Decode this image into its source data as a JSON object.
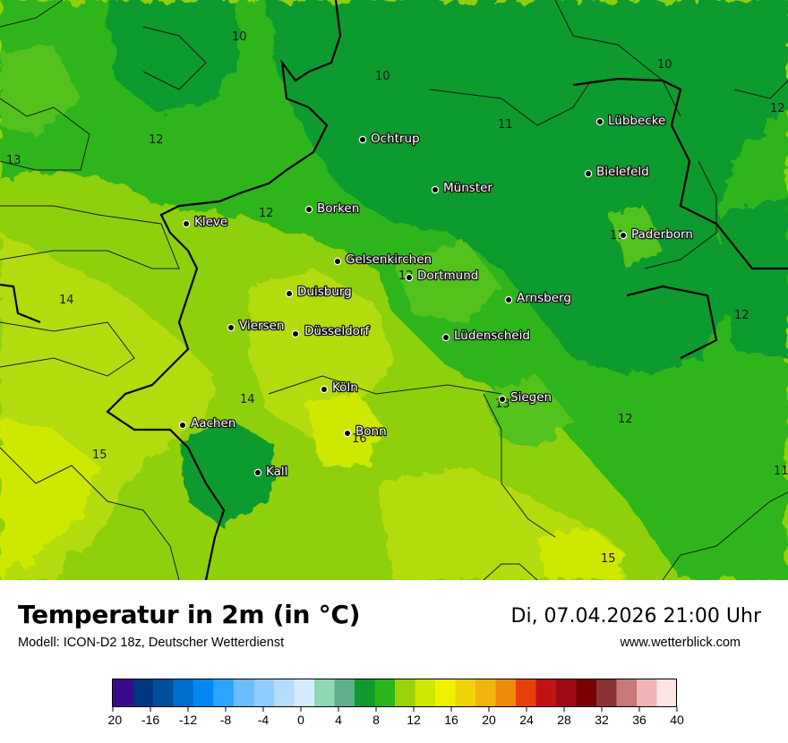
{
  "title": "Temperatur in 2m (in °C)",
  "model": "Modell: ICON-D2 18z, Deutscher Wetterdienst",
  "datetime": "Di, 07.04.2026 21:00 Uhr",
  "website": "www.wetterblick.com",
  "cities": [
    {
      "name": "Lübbecke"
    },
    {
      "name": "Ochtrup"
    },
    {
      "name": "Bielefeld"
    },
    {
      "name": "Münster"
    },
    {
      "name": "Borken"
    },
    {
      "name": "Kleve"
    },
    {
      "name": "Paderborn"
    },
    {
      "name": "Gelsenkirchen"
    },
    {
      "name": "Dortmund"
    },
    {
      "name": "Duisburg"
    },
    {
      "name": "Arnsberg"
    },
    {
      "name": "Viersen"
    },
    {
      "name": "Düsseldorf"
    },
    {
      "name": "Lüdenscheid"
    },
    {
      "name": "Köln"
    },
    {
      "name": "Siegen"
    },
    {
      "name": "Aachen"
    },
    {
      "name": "Bonn"
    },
    {
      "name": "Kall"
    }
  ],
  "temperature_labels": [
    "10",
    "10",
    "10",
    "12",
    "11",
    "12",
    "13",
    "12",
    "11",
    "14",
    "12",
    "12",
    "14",
    "13",
    "12",
    "15",
    "16",
    "11",
    "15"
  ],
  "legend": {
    "ticks": [
      "-20",
      "-16",
      "-12",
      "-8",
      "-4",
      "0",
      "4",
      "8",
      "12",
      "16",
      "20",
      "24",
      "28",
      "32",
      "36",
      "40"
    ],
    "colors": [
      "#3a0a8c",
      "#00367f",
      "#004f9e",
      "#006ccc",
      "#0088f0",
      "#2ca4ff",
      "#6bbdff",
      "#8fcdff",
      "#b5dcff",
      "#d6ebff",
      "#8fd8b4",
      "#5fb08a",
      "#0f9a2e",
      "#2ab51a",
      "#9bd30a",
      "#cee804",
      "#f0f000",
      "#f0d40a",
      "#f0b40a",
      "#f08a0a",
      "#e8400a",
      "#c01414",
      "#a00a14",
      "#780000",
      "#8c3232",
      "#c87878",
      "#f0b4b4",
      "#ffe4e4"
    ]
  }
}
